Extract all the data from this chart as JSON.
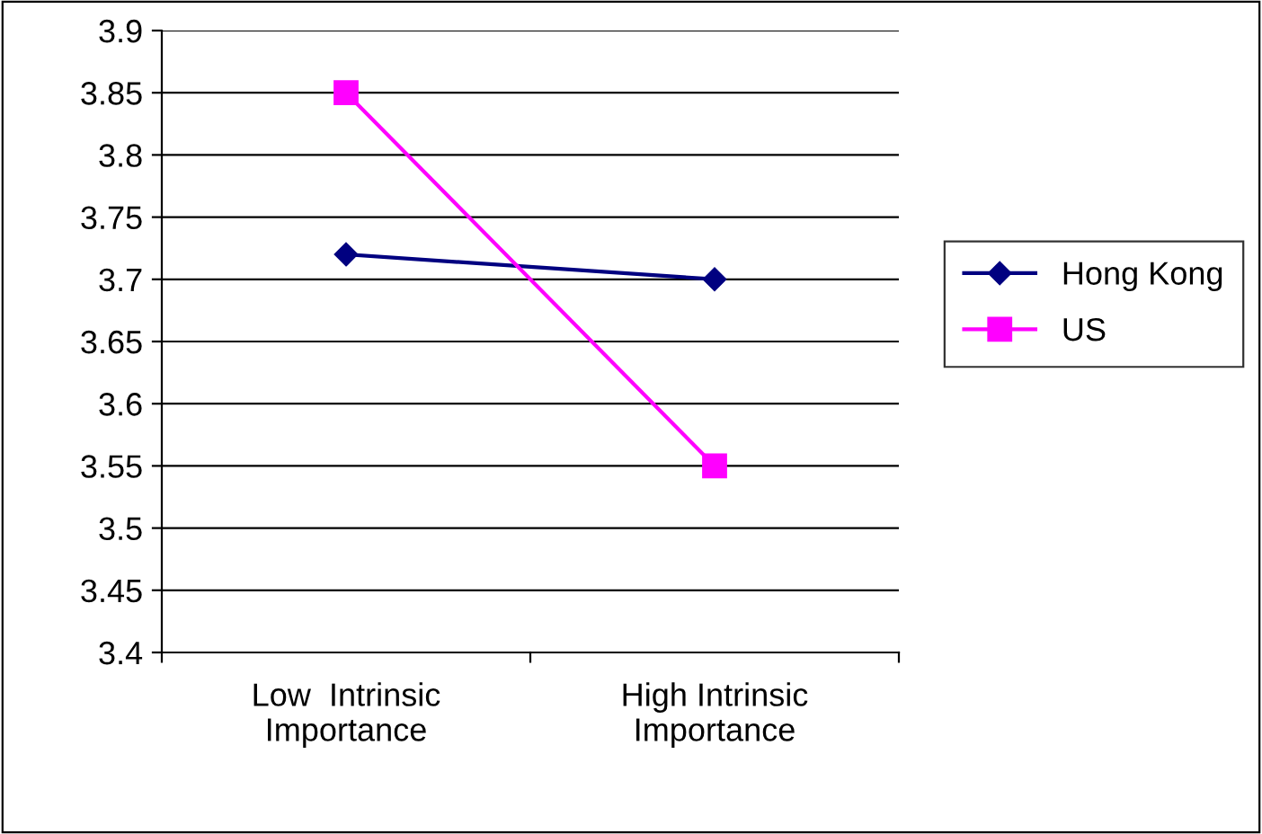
{
  "chart_data": {
    "type": "line",
    "categories": [
      "Low  Intrinsic\nImportance",
      "High Intrinsic\nImportance"
    ],
    "series": [
      {
        "name": "Hong Kong",
        "color": "#000080",
        "values": [
          3.72,
          3.7
        ],
        "marker": "diamond"
      },
      {
        "name": "US",
        "color": "#ff00ff",
        "values": [
          3.85,
          3.55
        ],
        "marker": "square"
      }
    ],
    "ylim": [
      3.4,
      3.9
    ],
    "yticks": [
      3.4,
      3.45,
      3.5,
      3.55,
      3.6,
      3.65,
      3.7,
      3.75,
      3.8,
      3.85,
      3.9
    ],
    "grid": "y",
    "legend": "right"
  }
}
